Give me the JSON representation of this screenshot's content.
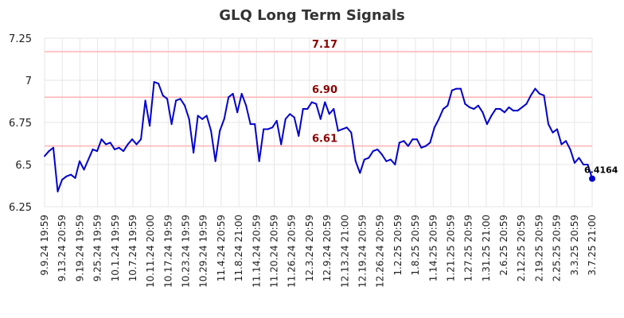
{
  "chart_data": {
    "type": "line",
    "title": "GLQ Long Term Signals",
    "xlabel": "",
    "ylabel": "",
    "ylim": [
      6.25,
      7.25
    ],
    "yticks": [
      "6.25",
      "6.5",
      "6.75",
      "7",
      "7.25"
    ],
    "grid": true,
    "xtick_labels": [
      "9.9.24 19:59",
      "9.13.24 20:59",
      "9.19.24 19:59",
      "9.25.24 19:59",
      "10.1.24 19:59",
      "10.7.24 19:59",
      "10.11.24 20:00",
      "10.17.24 19:59",
      "10.23.24 19:59",
      "10.29.24 19:59",
      "11.4.24 20:59",
      "11.8.24 21:00",
      "11.14.24 20:59",
      "11.20.24 20:59",
      "11.26.24 20:59",
      "12.3.24 20:59",
      "12.9.24 20:59",
      "12.13.24 21:00",
      "12.19.24 20:59",
      "12.26.24 20:59",
      "1.2.25 20:59",
      "1.8.25 20:59",
      "1.14.25 20:59",
      "1.21.25 20:59",
      "1.27.25 20:59",
      "1.31.25 21:00",
      "2.6.25 20:59",
      "2.12.25 20:59",
      "2.19.25 20:59",
      "2.25.25 20:59",
      "3.3.25 20:59",
      "3.7.25 21:00"
    ],
    "levels": [
      {
        "value": 7.17,
        "label": "7.17"
      },
      {
        "value": 6.9,
        "label": "6.90"
      },
      {
        "value": 6.61,
        "label": "6.61"
      }
    ],
    "series": [
      {
        "color": "#0000cc",
        "values": [
          6.55,
          6.58,
          6.6,
          6.34,
          6.41,
          6.43,
          6.44,
          6.42,
          6.52,
          6.47,
          6.53,
          6.59,
          6.58,
          6.65,
          6.62,
          6.63,
          6.59,
          6.6,
          6.58,
          6.62,
          6.65,
          6.62,
          6.65,
          6.88,
          6.73,
          6.99,
          6.98,
          6.91,
          6.89,
          6.74,
          6.88,
          6.89,
          6.85,
          6.77,
          6.57,
          6.79,
          6.77,
          6.79,
          6.7,
          6.52,
          6.7,
          6.77,
          6.9,
          6.92,
          6.81,
          6.92,
          6.85,
          6.74,
          6.74,
          6.52,
          6.71,
          6.71,
          6.72,
          6.76,
          6.62,
          6.77,
          6.8,
          6.78,
          6.67,
          6.83,
          6.83,
          6.87,
          6.86,
          6.77,
          6.87,
          6.8,
          6.83,
          6.7,
          6.71,
          6.72,
          6.69,
          6.52,
          6.45,
          6.53,
          6.54,
          6.58,
          6.59,
          6.56,
          6.52,
          6.53,
          6.5,
          6.63,
          6.64,
          6.61,
          6.65,
          6.65,
          6.6,
          6.61,
          6.63,
          6.72,
          6.77,
          6.83,
          6.85,
          6.94,
          6.95,
          6.95,
          6.86,
          6.84,
          6.83,
          6.85,
          6.81,
          6.74,
          6.79,
          6.83,
          6.83,
          6.81,
          6.84,
          6.82,
          6.82,
          6.84,
          6.86,
          6.91,
          6.95,
          6.92,
          6.91,
          6.74,
          6.69,
          6.71,
          6.62,
          6.64,
          6.59,
          6.51,
          6.54,
          6.5,
          6.5,
          6.4164
        ]
      }
    ],
    "last_value_label": "6.4164"
  }
}
